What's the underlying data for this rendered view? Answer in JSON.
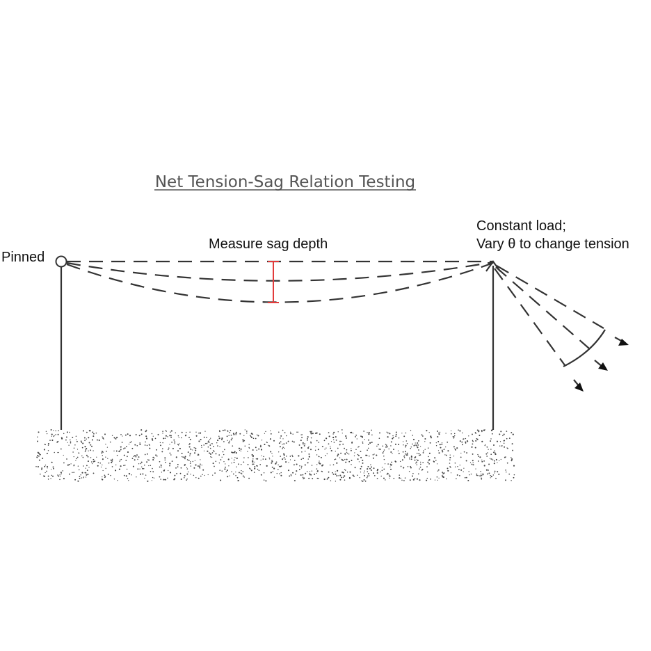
{
  "diagram": {
    "title": "Net Tension-Sag Relation Testing",
    "labels": {
      "pinned": "Pinned",
      "measure": "Measure sag depth",
      "load_line1": "Constant load;",
      "load_line2": "Vary θ to change tension"
    },
    "colors": {
      "line": "#333333",
      "sag_marker": "#e23b3b",
      "title": "#555555",
      "ground_dots": "#444444"
    }
  }
}
